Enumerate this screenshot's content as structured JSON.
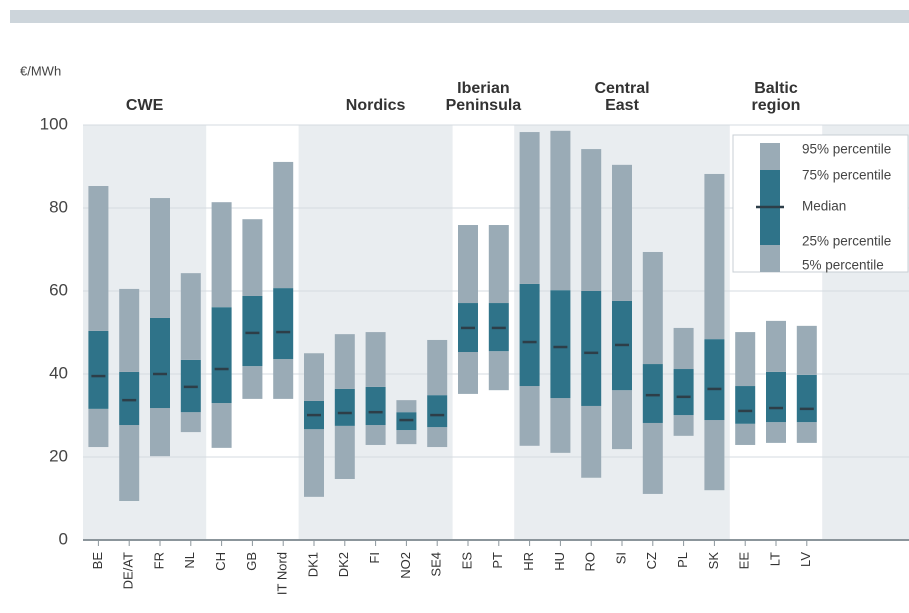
{
  "chart_data": {
    "type": "box",
    "y_unit": "€/MWh",
    "categories": [
      "BE",
      "DE/AT",
      "FR",
      "NL",
      "CH",
      "GB",
      "IT Nord",
      "DK1",
      "DK2",
      "FI",
      "NO2",
      "SE4",
      "ES",
      "PT",
      "HR",
      "HU",
      "RO",
      "SI",
      "CZ",
      "PL",
      "SK",
      "EE",
      "LT",
      "LV"
    ],
    "groups": [
      {
        "label_lines": [
          "CWE"
        ],
        "first": 0,
        "last": 3
      },
      {
        "label_lines": [
          "Nordics"
        ],
        "first": 7,
        "last": 11
      },
      {
        "label_lines": [
          "Iberian",
          "Peninsula"
        ],
        "first": 12,
        "last": 13
      },
      {
        "label_lines": [
          "Central",
          "East"
        ],
        "first": 14,
        "last": 20
      },
      {
        "label_lines": [
          "Baltic",
          "region"
        ],
        "first": 21,
        "last": 23
      }
    ],
    "series": [
      {
        "name": "95% percentile",
        "color": "#9aabb6",
        "values": [
          85.3,
          60.5,
          82.4,
          64.3,
          81.4,
          77.3,
          91.1,
          45,
          49.6,
          50.1,
          33.7,
          48.2,
          75.9,
          75.9,
          98.3,
          98.6,
          94.2,
          90.4,
          69.4,
          51.1,
          88.2,
          50.1,
          52.8,
          51.6
        ]
      },
      {
        "name": "75% percentile",
        "color": "#2f7389",
        "values": [
          50.4,
          40.5,
          53.5,
          43.4,
          56.1,
          58.8,
          60.7,
          33.5,
          36.4,
          36.9,
          30.8,
          34.9,
          57.1,
          57.1,
          61.7,
          60.2,
          60,
          57.6,
          42.4,
          41.2,
          48.4,
          37.1,
          40.5,
          39.8
        ]
      },
      {
        "name": "Median",
        "color": "#2d3e48",
        "values": [
          39.5,
          33.7,
          40,
          36.9,
          41.2,
          49.9,
          50.1,
          30.1,
          30.6,
          30.8,
          28.9,
          30.1,
          51.1,
          51.1,
          47.7,
          46.5,
          45.1,
          47,
          34.9,
          34.5,
          36.4,
          31.1,
          31.8,
          31.6
        ]
      },
      {
        "name": "25% percentile",
        "color": "#2f7389",
        "values": [
          31.6,
          27.7,
          31.8,
          30.8,
          33,
          41.9,
          43.6,
          26.7,
          27.5,
          27.7,
          26.5,
          27.2,
          45.3,
          45.5,
          37.1,
          34.2,
          32.3,
          36.1,
          28.2,
          30.1,
          28.9,
          28,
          28.4,
          28.4
        ]
      },
      {
        "name": "5% percentile",
        "color": "#9aabb6",
        "values": [
          22.4,
          9.4,
          20.2,
          26,
          22.2,
          34,
          34,
          10.4,
          14.7,
          22.9,
          23.1,
          22.4,
          35.2,
          36.1,
          22.7,
          21,
          15,
          21.9,
          11.1,
          25.1,
          12,
          22.9,
          23.4,
          23.4
        ]
      }
    ],
    "ylim": [
      0,
      100
    ],
    "yticks": [
      0,
      20,
      40,
      60,
      80,
      100
    ],
    "grid": true
  }
}
